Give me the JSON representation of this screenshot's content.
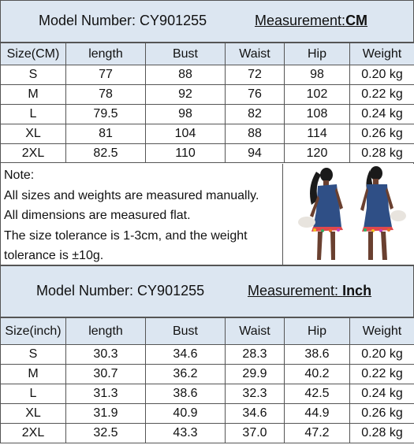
{
  "cm_section": {
    "model_label": "Model Number: CY901255",
    "measurement_prefix": "Measurement:",
    "measurement_unit": "CM",
    "headers": [
      "Size(CM)",
      "length",
      "Bust",
      "Waist",
      "Hip",
      "Weight"
    ],
    "rows": [
      [
        "S",
        "77",
        "88",
        "72",
        "98",
        "0.20 kg"
      ],
      [
        "M",
        "78",
        "92",
        "76",
        "102",
        "0.22 kg"
      ],
      [
        "L",
        "79.5",
        "98",
        "82",
        "108",
        "0.24 kg"
      ],
      [
        "XL",
        "81",
        "104",
        "88",
        "114",
        "0.26 kg"
      ],
      [
        "2XL",
        "82.5",
        "110",
        "94",
        "120",
        "0.28 kg"
      ]
    ]
  },
  "note": {
    "title": "Note:",
    "lines": [
      "All sizes and weights are measured manually.",
      "All dimensions are measured flat.",
      "The size tolerance is 1-3cm, and the weight",
      "tolerance is ±10g."
    ]
  },
  "inch_section": {
    "model_label": "Model Number:  CY901255",
    "measurement_prefix": "Measurement: ",
    "measurement_unit": "Inch",
    "headers": [
      "Size(inch)",
      "length",
      "Bust",
      "Waist",
      "Hip",
      "Weight"
    ],
    "rows": [
      [
        "S",
        "30.3",
        "34.6",
        "28.3",
        "38.6",
        "0.20 kg"
      ],
      [
        "M",
        "30.7",
        "36.2",
        "29.9",
        "40.2",
        "0.22 kg"
      ],
      [
        "L",
        "31.3",
        "38.6",
        "32.3",
        "42.5",
        "0.24 kg"
      ],
      [
        "XL",
        "31.9",
        "40.9",
        "34.6",
        "44.9",
        "0.26 kg"
      ],
      [
        "2XL",
        "32.5",
        "43.3",
        "37.0",
        "47.2",
        "0.28 kg"
      ]
    ]
  },
  "colors": {
    "header_fill": "#dce6f1",
    "denim": "#2f4f86",
    "skin": "#6a4030"
  }
}
